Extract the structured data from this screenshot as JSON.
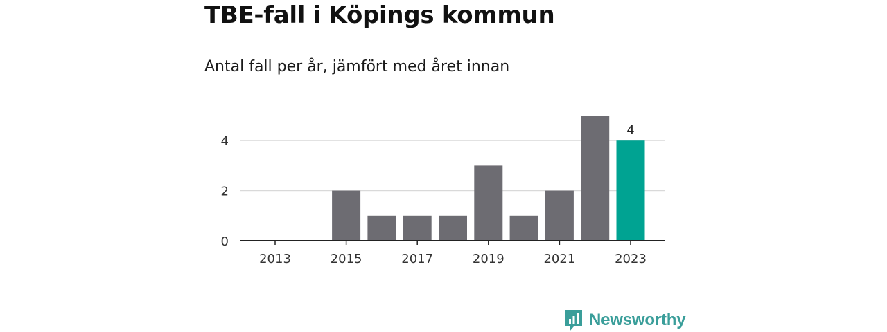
{
  "header": {
    "title": "TBE-fall i Köpings kommun",
    "subtitle": "Antal fall per år, jämfört med året innan"
  },
  "brand": {
    "name": "Newsworthy",
    "color": "#3a9e9a"
  },
  "colors": {
    "bar": "#6d6c72",
    "highlight": "#00a392",
    "grid": "#d9d9d9",
    "axis": "#222222"
  },
  "chart_data": {
    "type": "bar",
    "title": "TBE-fall i Köpings kommun",
    "subtitle": "Antal fall per år, jämfört med året innan",
    "categories": [
      "2013",
      "2014",
      "2015",
      "2016",
      "2017",
      "2018",
      "2019",
      "2020",
      "2021",
      "2022",
      "2023"
    ],
    "values": [
      0,
      0,
      2,
      1,
      1,
      1,
      3,
      1,
      2,
      5,
      4
    ],
    "xtick_labels": [
      "2013",
      "2015",
      "2017",
      "2019",
      "2021",
      "2023"
    ],
    "ytick_labels": [
      "0",
      "2",
      "4"
    ],
    "ylim": [
      0,
      5
    ],
    "highlight_index": 10,
    "data_labels": [
      {
        "index": 10,
        "text": "4"
      }
    ],
    "grid": true,
    "xlabel": "",
    "ylabel": ""
  }
}
